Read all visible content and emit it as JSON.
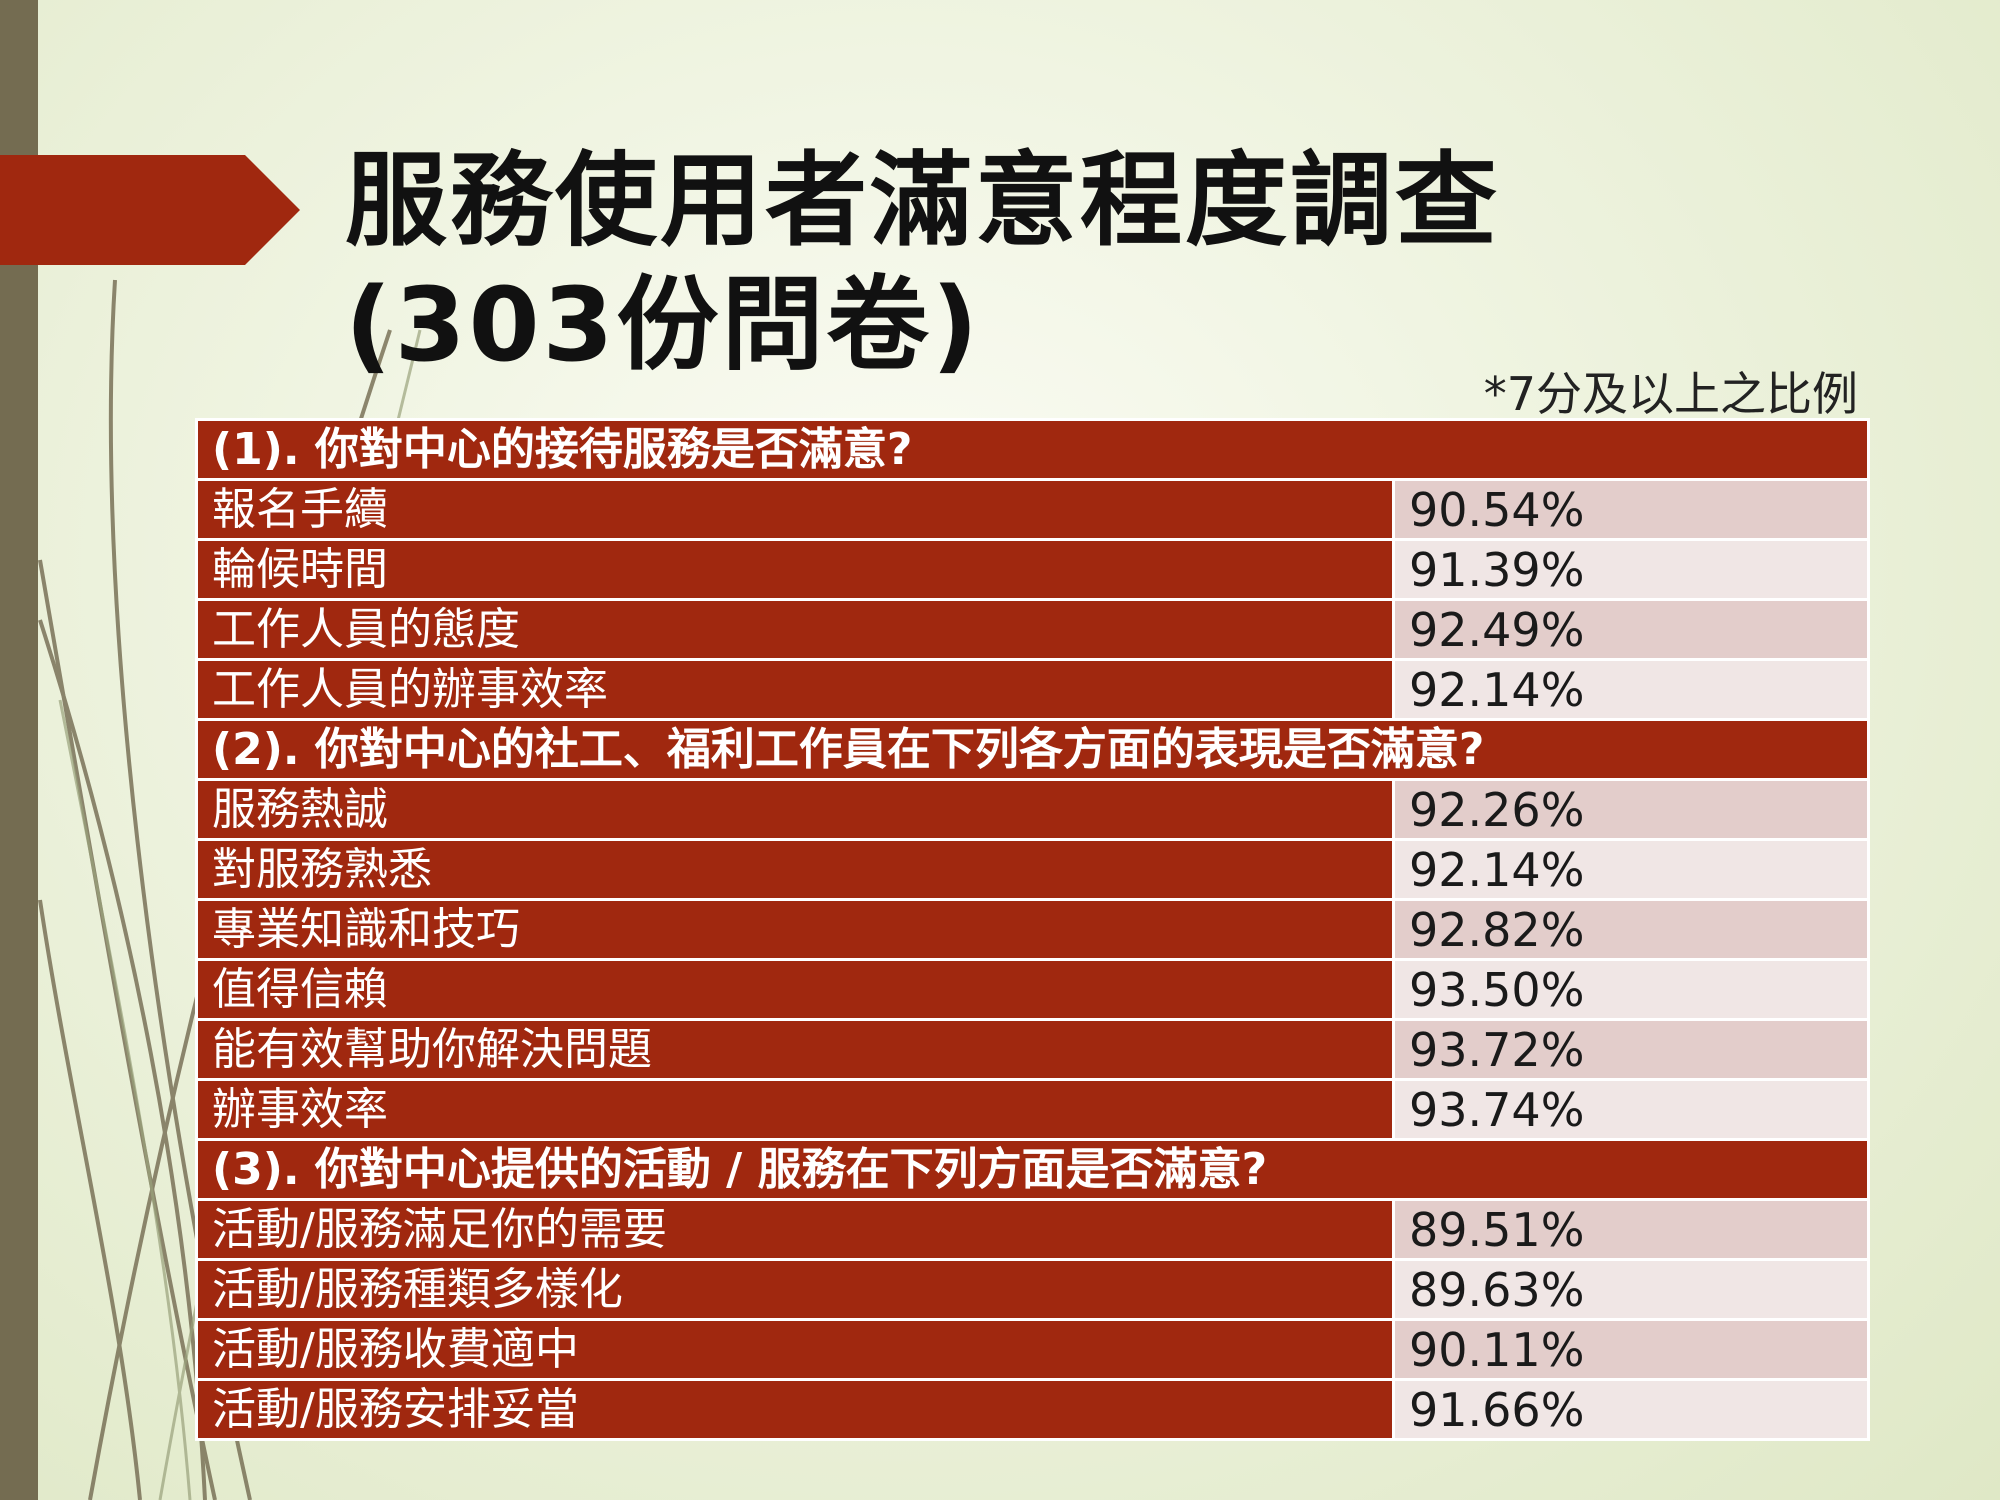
{
  "title": {
    "line1": "服務使用者滿意程度調查",
    "line2": "(303份問卷)"
  },
  "note": "*7分及以上之比例",
  "colors": {
    "accent_red": "#a0280f",
    "left_bar": "#746c51",
    "row_shade_a": "#e3cdcb",
    "row_shade_b": "#f0e6e5"
  },
  "sections": [
    {
      "heading": "(1). 你對中心的接待服務是否滿意?",
      "rows": [
        {
          "label": "報名手續",
          "value": "90.54%"
        },
        {
          "label": "輪候時間",
          "value": "91.39%"
        },
        {
          "label": "工作人員的態度",
          "value": "92.49%"
        },
        {
          "label": "工作人員的辦事效率",
          "value": "92.14%"
        }
      ]
    },
    {
      "heading": "(2). 你對中心的社工、福利工作員在下列各方面的表現是否滿意?",
      "rows": [
        {
          "label": "服務熱誠",
          "value": "92.26%"
        },
        {
          "label": "對服務熟悉",
          "value": "92.14%"
        },
        {
          "label": "專業知識和技巧",
          "value": "92.82%"
        },
        {
          "label": "值得信賴",
          "value": "93.50%"
        },
        {
          "label": "能有效幫助你解決問題",
          "value": "93.72%"
        },
        {
          "label": "辦事效率",
          "value": "93.74%"
        }
      ]
    },
    {
      "heading": "(3). 你對中心提供的活動 / 服務在下列方面是否滿意?",
      "rows": [
        {
          "label": "活動/服務滿足你的需要",
          "value": "89.51%"
        },
        {
          "label": "活動/服務種類多樣化",
          "value": "89.63%"
        },
        {
          "label": "活動/服務收費適中",
          "value": "90.11%"
        },
        {
          "label": "活動/服務安排妥當",
          "value": "91.66%"
        }
      ]
    }
  ]
}
